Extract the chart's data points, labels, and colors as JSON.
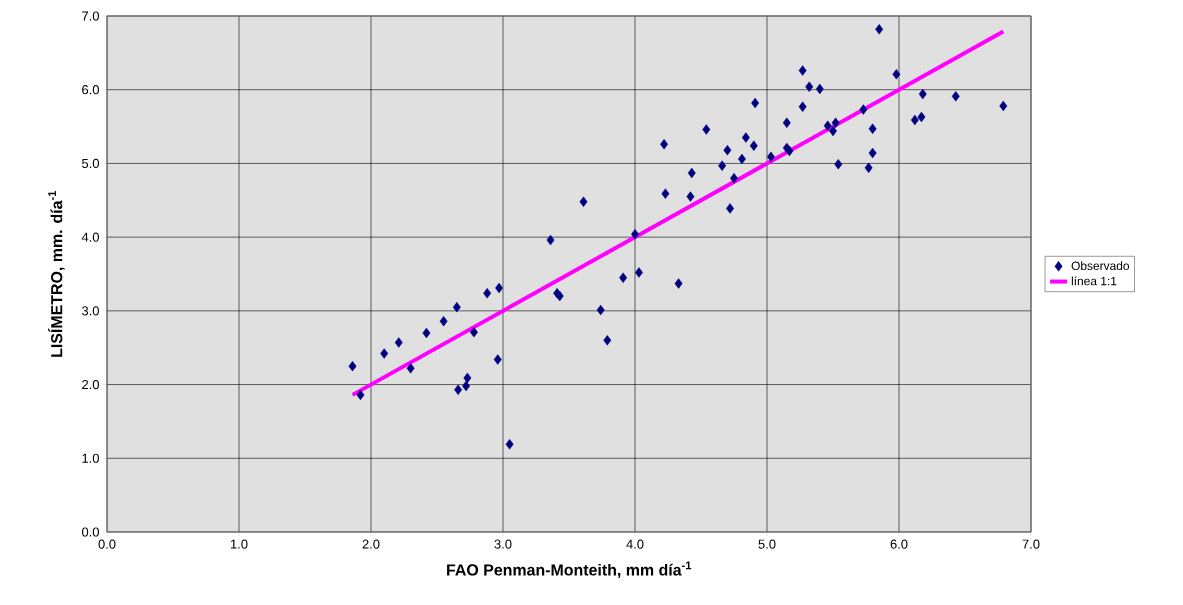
{
  "chart_data": {
    "type": "scatter",
    "xlabel": "FAO Penman-Monteith, mm día$^{-1}$",
    "ylabel": "LISÍMETRO, mm. día$^{-1}$",
    "xlim": [
      0,
      7
    ],
    "ylim": [
      0,
      7
    ],
    "xticks": [
      {
        "value": 0,
        "label": "0.0"
      },
      {
        "value": 1,
        "label": "1.0"
      },
      {
        "value": 2,
        "label": "2.0"
      },
      {
        "value": 3,
        "label": "3.0"
      },
      {
        "value": 4,
        "label": "4.0"
      },
      {
        "value": 5,
        "label": "5.0"
      },
      {
        "value": 6,
        "label": "6.0"
      },
      {
        "value": 7,
        "label": "7.0"
      }
    ],
    "yticks": [
      {
        "value": 0,
        "label": "0.0"
      },
      {
        "value": 1,
        "label": "1.0"
      },
      {
        "value": 2,
        "label": "2.0"
      },
      {
        "value": 3,
        "label": "3.0"
      },
      {
        "value": 4,
        "label": "4.0"
      },
      {
        "value": 5,
        "label": "5.0"
      },
      {
        "value": 6,
        "label": "6.0"
      },
      {
        "value": 7,
        "label": "7.0"
      }
    ],
    "grid": true,
    "legend": "right",
    "series": [
      {
        "name": "Observado",
        "marker": "diamond",
        "color": "#000080",
        "x": [
          1.86,
          1.92,
          2.1,
          2.21,
          2.3,
          2.42,
          2.55,
          2.65,
          2.66,
          2.72,
          2.73,
          2.78,
          2.88,
          2.97,
          2.96,
          3.05,
          3.36,
          3.41,
          3.43,
          3.61,
          3.74,
          3.79,
          3.91,
          4.0,
          4.03,
          4.33,
          4.22,
          4.23,
          4.42,
          4.43,
          4.54,
          4.66,
          4.7,
          4.72,
          4.75,
          4.81,
          4.84,
          4.9,
          4.91,
          5.03,
          5.15,
          5.15,
          5.17,
          5.27,
          5.27,
          5.32,
          5.4,
          5.46,
          5.5,
          5.52,
          5.54,
          5.73,
          5.77,
          5.8,
          5.8,
          5.85,
          5.98,
          6.12,
          6.17,
          6.18,
          6.43,
          6.79
        ],
        "values": [
          2.25,
          1.86,
          2.42,
          2.57,
          2.22,
          2.7,
          2.86,
          3.05,
          1.93,
          1.98,
          2.09,
          2.71,
          3.24,
          3.31,
          2.34,
          1.19,
          3.96,
          3.24,
          3.2,
          4.48,
          3.01,
          2.6,
          3.45,
          4.04,
          3.52,
          3.37,
          5.26,
          4.59,
          4.55,
          4.87,
          5.46,
          4.97,
          5.18,
          4.39,
          4.8,
          5.06,
          5.35,
          5.24,
          5.82,
          5.09,
          5.55,
          5.21,
          5.17,
          6.26,
          5.77,
          6.04,
          6.01,
          5.51,
          5.44,
          5.55,
          4.99,
          5.73,
          4.94,
          5.14,
          5.47,
          6.82,
          6.21,
          5.59,
          5.63,
          5.94,
          5.91,
          5.78
        ]
      },
      {
        "name": "línea 1:1",
        "type": "line",
        "marker": "none",
        "line_style": "solid",
        "color": "#ff00ff",
        "x": [
          1.86,
          6.79
        ],
        "values": [
          1.86,
          6.79
        ]
      }
    ]
  }
}
